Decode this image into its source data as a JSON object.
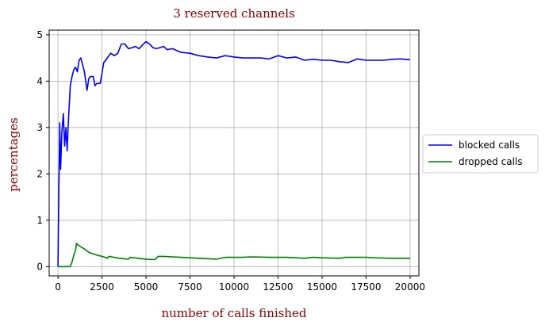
{
  "chart_data": {
    "type": "line",
    "title": "3 reserved channels",
    "xlabel": "number of calls finished",
    "ylabel": "percentages",
    "xlim": [
      -500,
      20500
    ],
    "ylim": [
      -0.2,
      5.1
    ],
    "x_ticks": [
      0,
      2500,
      5000,
      7500,
      10000,
      12500,
      15000,
      17500,
      20000
    ],
    "y_ticks": [
      0,
      1,
      2,
      3,
      4,
      5
    ],
    "grid": true,
    "legend_position": "right-outside",
    "series": [
      {
        "name": "blocked calls",
        "color": "#0000ff",
        "points": [
          [
            0,
            0.0
          ],
          [
            40,
            1.4
          ],
          [
            100,
            3.1
          ],
          [
            150,
            2.1
          ],
          [
            220,
            2.9
          ],
          [
            300,
            3.3
          ],
          [
            380,
            2.6
          ],
          [
            450,
            3.0
          ],
          [
            520,
            2.5
          ],
          [
            600,
            3.2
          ],
          [
            700,
            3.9
          ],
          [
            800,
            4.1
          ],
          [
            900,
            4.25
          ],
          [
            1000,
            4.3
          ],
          [
            1100,
            4.2
          ],
          [
            1200,
            4.45
          ],
          [
            1300,
            4.5
          ],
          [
            1400,
            4.35
          ],
          [
            1500,
            4.2
          ],
          [
            1650,
            3.8
          ],
          [
            1750,
            4.05
          ],
          [
            1850,
            4.1
          ],
          [
            2000,
            4.1
          ],
          [
            2100,
            3.9
          ],
          [
            2200,
            3.95
          ],
          [
            2400,
            3.95
          ],
          [
            2600,
            4.4
          ],
          [
            2800,
            4.5
          ],
          [
            3000,
            4.6
          ],
          [
            3200,
            4.55
          ],
          [
            3400,
            4.6
          ],
          [
            3600,
            4.8
          ],
          [
            3800,
            4.8
          ],
          [
            4000,
            4.7
          ],
          [
            4200,
            4.72
          ],
          [
            4400,
            4.75
          ],
          [
            4600,
            4.7
          ],
          [
            4800,
            4.78
          ],
          [
            5000,
            4.85
          ],
          [
            5200,
            4.8
          ],
          [
            5400,
            4.72
          ],
          [
            5600,
            4.7
          ],
          [
            6000,
            4.75
          ],
          [
            6200,
            4.68
          ],
          [
            6500,
            4.7
          ],
          [
            7000,
            4.62
          ],
          [
            7500,
            4.6
          ],
          [
            8000,
            4.55
          ],
          [
            8500,
            4.52
          ],
          [
            9000,
            4.5
          ],
          [
            9500,
            4.55
          ],
          [
            10000,
            4.52
          ],
          [
            10500,
            4.5
          ],
          [
            11000,
            4.5
          ],
          [
            11500,
            4.5
          ],
          [
            12000,
            4.48
          ],
          [
            12500,
            4.55
          ],
          [
            13000,
            4.5
          ],
          [
            13500,
            4.52
          ],
          [
            14000,
            4.45
          ],
          [
            14500,
            4.47
          ],
          [
            15000,
            4.45
          ],
          [
            15500,
            4.45
          ],
          [
            16000,
            4.42
          ],
          [
            16500,
            4.4
          ],
          [
            17000,
            4.48
          ],
          [
            17500,
            4.45
          ],
          [
            18000,
            4.45
          ],
          [
            18500,
            4.45
          ],
          [
            19000,
            4.47
          ],
          [
            19500,
            4.48
          ],
          [
            20000,
            4.46
          ]
        ]
      },
      {
        "name": "dropped calls",
        "color": "#008000",
        "points": [
          [
            0,
            0.0
          ],
          [
            700,
            0.0
          ],
          [
            800,
            0.1
          ],
          [
            900,
            0.25
          ],
          [
            1000,
            0.35
          ],
          [
            1050,
            0.5
          ],
          [
            1200,
            0.45
          ],
          [
            1500,
            0.38
          ],
          [
            1800,
            0.3
          ],
          [
            2200,
            0.25
          ],
          [
            2600,
            0.21
          ],
          [
            2800,
            0.18
          ],
          [
            2900,
            0.22
          ],
          [
            3500,
            0.18
          ],
          [
            4000,
            0.16
          ],
          [
            4100,
            0.2
          ],
          [
            5000,
            0.16
          ],
          [
            5500,
            0.15
          ],
          [
            5700,
            0.22
          ],
          [
            6000,
            0.22
          ],
          [
            6500,
            0.21
          ],
          [
            7000,
            0.2
          ],
          [
            8000,
            0.18
          ],
          [
            9000,
            0.16
          ],
          [
            9500,
            0.2
          ],
          [
            10000,
            0.2
          ],
          [
            10500,
            0.2
          ],
          [
            11000,
            0.21
          ],
          [
            12000,
            0.2
          ],
          [
            12500,
            0.2
          ],
          [
            13000,
            0.2
          ],
          [
            14000,
            0.18
          ],
          [
            14500,
            0.2
          ],
          [
            15000,
            0.19
          ],
          [
            16000,
            0.18
          ],
          [
            16300,
            0.2
          ],
          [
            17000,
            0.2
          ],
          [
            17500,
            0.2
          ],
          [
            18000,
            0.19
          ],
          [
            19000,
            0.18
          ],
          [
            20000,
            0.18
          ]
        ]
      }
    ]
  }
}
